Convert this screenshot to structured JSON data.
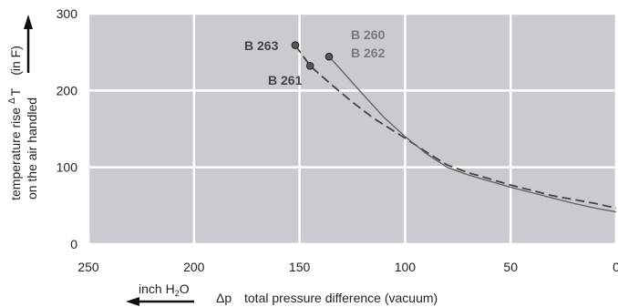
{
  "chart_data": {
    "type": "line",
    "ylabel_line1": "temperature rise",
    "ylabel_delta": "Δ",
    "ylabel_T": "T",
    "ylabel_unit": "(in F)",
    "ylabel_line2": "on the air handled",
    "xlabel_unit_prefix": "inch H",
    "xlabel_unit_sub": "2",
    "xlabel_unit_suffix": "O",
    "xlabel_delta": "Δp",
    "xlabel_text": "total pressure difference (vacuum)",
    "xlim": [
      250,
      0
    ],
    "ylim": [
      0,
      300
    ],
    "x_ticks": [
      250,
      200,
      150,
      100,
      50,
      0
    ],
    "x_tick_labels": [
      "250",
      "200",
      "150",
      "100",
      "50",
      "0"
    ],
    "y_ticks": [
      0,
      100,
      200,
      300
    ],
    "y_tick_labels": [
      "0",
      "100",
      "200",
      "300"
    ],
    "grid": true,
    "colors": {
      "plot_bg": "#c9cbd1",
      "grid": "#ffffff",
      "series_dark": "#444444",
      "series_gray": "#666666",
      "label_gray": "#7a7a7a"
    },
    "series": [
      {
        "style": "dashed",
        "labels": [
          "B 263",
          "B 261"
        ],
        "marker_points": [
          [
            152,
            259
          ],
          [
            145,
            232
          ]
        ],
        "points": [
          [
            152,
            259
          ],
          [
            145,
            232
          ],
          [
            135,
            208
          ],
          [
            125,
            185
          ],
          [
            115,
            164
          ],
          [
            100,
            138
          ],
          [
            90,
            120
          ],
          [
            80,
            103
          ],
          [
            70,
            93
          ],
          [
            60,
            85
          ],
          [
            50,
            77
          ],
          [
            40,
            70
          ],
          [
            30,
            63
          ],
          [
            20,
            58
          ],
          [
            10,
            53
          ],
          [
            0,
            47
          ]
        ]
      },
      {
        "style": "solid",
        "labels": [
          "B 260",
          "B 262"
        ],
        "marker_points": [
          [
            136,
            244
          ]
        ],
        "points": [
          [
            136,
            244
          ],
          [
            130,
            226
          ],
          [
            120,
            195
          ],
          [
            110,
            165
          ],
          [
            100,
            140
          ],
          [
            90,
            118
          ],
          [
            80,
            100
          ],
          [
            70,
            90
          ],
          [
            60,
            82
          ],
          [
            50,
            74
          ],
          [
            40,
            67
          ],
          [
            30,
            60
          ],
          [
            20,
            53
          ],
          [
            10,
            47
          ],
          [
            0,
            42
          ]
        ]
      }
    ]
  }
}
